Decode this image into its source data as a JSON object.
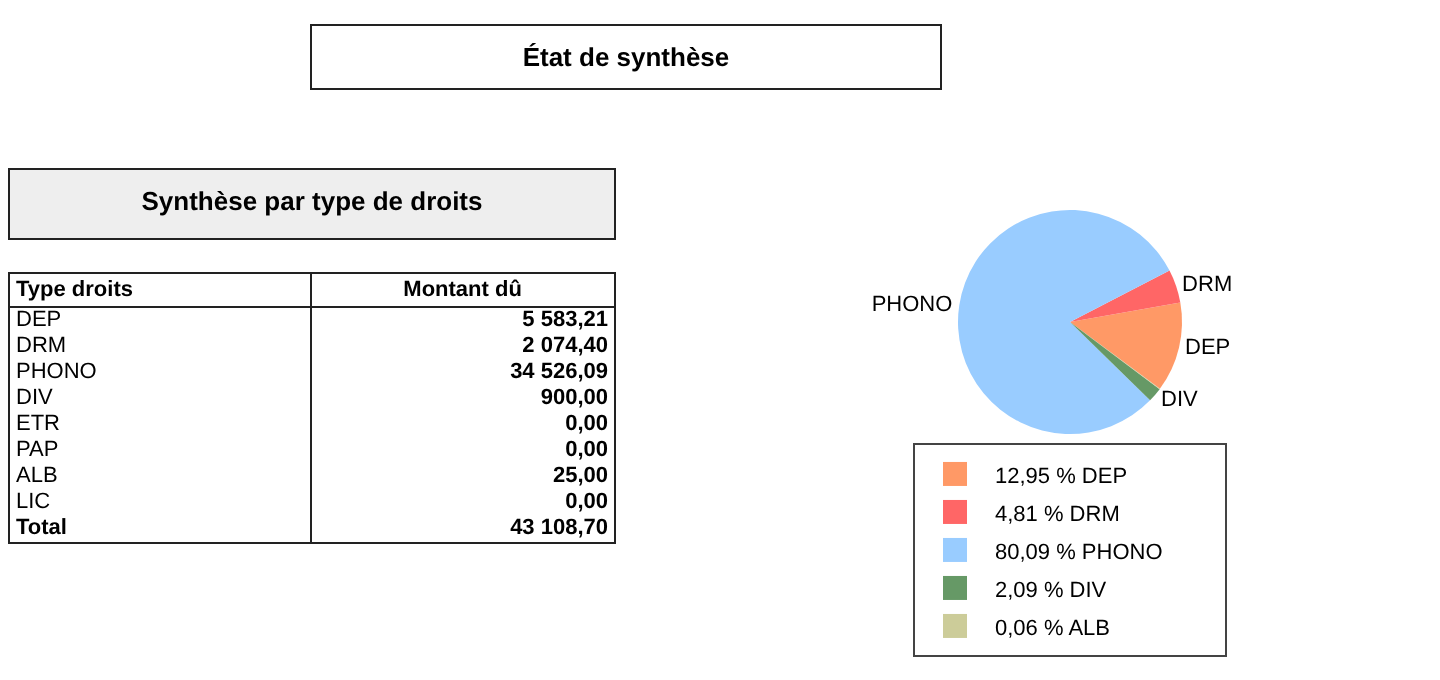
{
  "chart_data": [
    {
      "type": "other",
      "title": "Synthèse par type de droits",
      "xlabel": "Type droits",
      "ylabel": "Montant dû",
      "categories": [
        "DEP",
        "DRM",
        "PHONO",
        "DIV",
        "ETR",
        "PAP",
        "ALB",
        "LIC",
        "Total"
      ],
      "values": [
        5583.21,
        2074.4,
        34526.09,
        900.0,
        0,
        0,
        25.0,
        0,
        43108.7
      ],
      "value_labels": [
        "5 583,21",
        "2 074,40",
        "34 526,09",
        "900,00",
        "0,00",
        "0,00",
        "25,00",
        "0,00",
        "43 108,70"
      ]
    },
    {
      "type": "pie",
      "title": "État de synthèse",
      "categories": [
        "12,95 % DEP",
        "4,81 % DRM",
        "80,09 % PHONO",
        "2,09 % DIV",
        "0,06 % ALB"
      ],
      "values": [
        12.95,
        4.81,
        80.09,
        2.09,
        0.06
      ],
      "annotations": [
        {
          "text": "DEP",
          "x": "12,95 % DEP"
        },
        {
          "text": "DRM",
          "x": "4,81 % DRM"
        },
        {
          "text": "PHONO",
          "x": "80,09 % PHONO"
        },
        {
          "text": "DIV",
          "x": "2,09 % DIV"
        }
      ],
      "colors": [
        "#ff9966",
        "#ff6666",
        "#99ccff",
        "#669966",
        "#cccc99"
      ],
      "legend": "bottom"
    }
  ]
}
